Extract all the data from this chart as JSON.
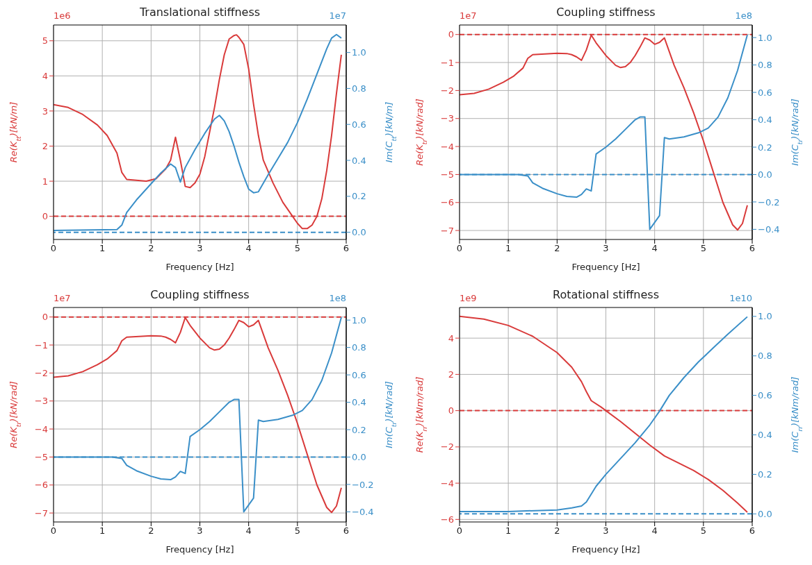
{
  "chart_data": [
    {
      "type": "line",
      "title": "Translational stiffness",
      "xlabel": "Frequency [Hz]",
      "ylabel": "Re(K$_{tt}$)[kN/m]",
      "y2label": "Im(C$_{tt}$)[kN/m]",
      "annotations": [
        "1e6",
        "1e7"
      ],
      "xlim": [
        0,
        6
      ],
      "xticks": [
        0,
        1,
        2,
        3,
        4,
        5,
        6
      ],
      "ylim": [
        -0.66,
        5.45
      ],
      "yticks": [
        0,
        1,
        2,
        3,
        4,
        5
      ],
      "y2lim": [
        -0.04,
        1.153
      ],
      "y2ticks": [
        {
          "value": 0,
          "label": "0.0"
        },
        0.2,
        0.4,
        0.6,
        0.8,
        {
          "value": 1,
          "label": "1.0"
        }
      ],
      "grid": true,
      "line_style": "solid",
      "ref_lines": [
        {
          "axis": "y",
          "value": 0,
          "color": "#d93a3a",
          "line_style": "dashed"
        },
        {
          "axis": "y2",
          "value": 0,
          "color": "#3a8fc8",
          "line_style": "dashed"
        }
      ],
      "series": [
        {
          "color": "#d93a3a",
          "axis": "y",
          "x": [
            0,
            0.3,
            0.6,
            0.9,
            1.1,
            1.3,
            1.4,
            1.5,
            1.9,
            2.1,
            2.3,
            2.4,
            2.5,
            2.6,
            2.7,
            2.8,
            2.9,
            3.0,
            3.1,
            3.2,
            3.3,
            3.4,
            3.5,
            3.6,
            3.7,
            3.75,
            3.8,
            3.9,
            4.0,
            4.1,
            4.2,
            4.3,
            4.5,
            4.7,
            4.9,
            5.0,
            5.1,
            5.2,
            5.3,
            5.4,
            5.5,
            5.6,
            5.7,
            5.8,
            5.9
          ],
          "values": [
            3.18,
            3.1,
            2.9,
            2.6,
            2.3,
            1.8,
            1.25,
            1.05,
            1.0,
            1.07,
            1.35,
            1.6,
            2.25,
            1.6,
            0.85,
            0.82,
            0.95,
            1.2,
            1.7,
            2.4,
            3.1,
            3.9,
            4.6,
            5.05,
            5.15,
            5.17,
            5.1,
            4.9,
            4.2,
            3.2,
            2.3,
            1.6,
            0.95,
            0.4,
            0,
            -0.2,
            -0.35,
            -0.35,
            -0.25,
            0,
            0.5,
            1.3,
            2.3,
            3.5,
            4.6
          ]
        },
        {
          "color": "#3a8fc8",
          "axis": "y2",
          "x": [
            0,
            1.3,
            1.4,
            1.5,
            1.7,
            2.0,
            2.2,
            2.4,
            2.5,
            2.6,
            2.7,
            2.9,
            3.1,
            3.3,
            3.4,
            3.5,
            3.6,
            3.7,
            3.8,
            3.9,
            4.0,
            4.1,
            4.2,
            4.4,
            4.6,
            4.8,
            5.0,
            5.2,
            5.4,
            5.6,
            5.7,
            5.8,
            5.9
          ],
          "values": [
            0.01,
            0.015,
            0.04,
            0.11,
            0.18,
            0.27,
            0.33,
            0.38,
            0.36,
            0.28,
            0.36,
            0.46,
            0.55,
            0.63,
            0.65,
            0.62,
            0.56,
            0.48,
            0.39,
            0.31,
            0.24,
            0.22,
            0.225,
            0.32,
            0.41,
            0.5,
            0.61,
            0.74,
            0.88,
            1.02,
            1.08,
            1.1,
            1.08
          ]
        }
      ]
    },
    {
      "type": "line",
      "title": "Coupling stiffness",
      "xlabel": "Frequency [Hz]",
      "ylabel": "Re(K$_{tr}$)[kN/rad]",
      "y2label": "Im(C$_{tr}$)[kN/rad]",
      "annotations": [
        "1e7",
        "1e8"
      ],
      "xlim": [
        0,
        6
      ],
      "xticks": [
        0,
        1,
        2,
        3,
        4,
        5,
        6
      ],
      "ylim": [
        -7.32,
        0.34
      ],
      "yticks": [
        {
          "value": -7,
          "label": "−7"
        },
        {
          "value": -6,
          "label": "−6"
        },
        {
          "value": -5,
          "label": "−5"
        },
        {
          "value": -4,
          "label": "−4"
        },
        {
          "value": -3,
          "label": "−3"
        },
        {
          "value": -2,
          "label": "−2"
        },
        {
          "value": -1,
          "label": "−1"
        },
        0
      ],
      "y2lim": [
        -0.474,
        1.092
      ],
      "y2ticks": [
        {
          "value": -0.4,
          "label": "−0.4"
        },
        {
          "value": -0.2,
          "label": "−0.2"
        },
        {
          "value": 0,
          "label": "0.0"
        },
        0.2,
        0.4,
        0.6,
        0.8,
        {
          "value": 1,
          "label": "1.0"
        }
      ],
      "grid": true,
      "line_style": "solid",
      "ref_lines": [
        {
          "axis": "y",
          "value": 0,
          "color": "#d93a3a",
          "line_style": "dashed"
        },
        {
          "axis": "y2",
          "value": 0,
          "color": "#3a8fc8",
          "line_style": "dashed"
        }
      ],
      "series": [
        {
          "color": "#d93a3a",
          "axis": "y",
          "x": [
            0,
            0.3,
            0.6,
            0.9,
            1.1,
            1.3,
            1.4,
            1.5,
            2.0,
            2.2,
            2.3,
            2.4,
            2.5,
            2.6,
            2.7,
            2.8,
            3.0,
            3.2,
            3.3,
            3.4,
            3.5,
            3.6,
            3.7,
            3.8,
            3.9,
            4.0,
            4.1,
            4.2,
            4.4,
            4.6,
            4.8,
            5.0,
            5.2,
            5.4,
            5.6,
            5.7,
            5.8,
            5.9
          ],
          "values": [
            -2.15,
            -2.1,
            -1.95,
            -1.7,
            -1.5,
            -1.2,
            -0.85,
            -0.72,
            -0.67,
            -0.68,
            -0.72,
            -0.8,
            -0.92,
            -0.55,
            -0.02,
            -0.3,
            -0.75,
            -1.1,
            -1.18,
            -1.15,
            -1.0,
            -0.75,
            -0.45,
            -0.12,
            -0.2,
            -0.35,
            -0.28,
            -0.12,
            -1.1,
            -1.9,
            -2.8,
            -3.8,
            -4.9,
            -6.0,
            -6.8,
            -6.98,
            -6.75,
            -6.1
          ]
        },
        {
          "color": "#3a8fc8",
          "axis": "y2",
          "x": [
            0,
            1.2,
            1.4,
            1.5,
            1.7,
            2.0,
            2.2,
            2.4,
            2.5,
            2.6,
            2.7,
            2.8,
            3.0,
            3.2,
            3.4,
            3.6,
            3.7,
            3.8,
            3.9,
            4.1,
            4.2,
            4.3,
            4.6,
            4.9,
            5.1,
            5.3,
            5.5,
            5.7,
            5.9
          ],
          "values": [
            0,
            0,
            -0.01,
            -0.06,
            -0.1,
            -0.14,
            -0.16,
            -0.165,
            -0.145,
            -0.105,
            -0.12,
            0.15,
            0.2,
            0.26,
            0.33,
            0.4,
            0.42,
            0.42,
            -0.4,
            -0.3,
            0.27,
            0.26,
            0.275,
            0.305,
            0.34,
            0.42,
            0.56,
            0.76,
            1.02
          ]
        }
      ]
    },
    {
      "type": "line",
      "title": "Coupling stiffness",
      "xlabel": "Frequency [Hz]",
      "ylabel": "Re(K$_{tr}$)[kN/rad]",
      "y2label": "Im(C$_{tr}$)[kN/rad]",
      "annotations": [
        "1e7",
        "1e8"
      ],
      "xlim": [
        0,
        6
      ],
      "xticks": [
        0,
        1,
        2,
        3,
        4,
        5,
        6
      ],
      "ylim": [
        -7.32,
        0.34
      ],
      "yticks": [
        {
          "value": -7,
          "label": "−7"
        },
        {
          "value": -6,
          "label": "−6"
        },
        {
          "value": -5,
          "label": "−5"
        },
        {
          "value": -4,
          "label": "−4"
        },
        {
          "value": -3,
          "label": "−3"
        },
        {
          "value": -2,
          "label": "−2"
        },
        {
          "value": -1,
          "label": "−1"
        },
        0
      ],
      "y2lim": [
        -0.474,
        1.092
      ],
      "y2ticks": [
        {
          "value": -0.4,
          "label": "−0.4"
        },
        {
          "value": -0.2,
          "label": "−0.2"
        },
        {
          "value": 0,
          "label": "0.0"
        },
        0.2,
        0.4,
        0.6,
        0.8,
        {
          "value": 1,
          "label": "1.0"
        }
      ],
      "grid": true,
      "line_style": "solid",
      "ref_lines": [
        {
          "axis": "y",
          "value": 0,
          "color": "#d93a3a",
          "line_style": "dashed"
        },
        {
          "axis": "y2",
          "value": 0,
          "color": "#3a8fc8",
          "line_style": "dashed"
        }
      ],
      "series": [
        {
          "color": "#d93a3a",
          "axis": "y",
          "x": [
            0,
            0.3,
            0.6,
            0.9,
            1.1,
            1.3,
            1.4,
            1.5,
            2.0,
            2.2,
            2.3,
            2.4,
            2.5,
            2.6,
            2.7,
            2.8,
            3.0,
            3.2,
            3.3,
            3.4,
            3.5,
            3.6,
            3.7,
            3.8,
            3.9,
            4.0,
            4.1,
            4.2,
            4.4,
            4.6,
            4.8,
            5.0,
            5.2,
            5.4,
            5.6,
            5.7,
            5.8,
            5.9
          ],
          "values": [
            -2.15,
            -2.1,
            -1.95,
            -1.7,
            -1.5,
            -1.2,
            -0.85,
            -0.72,
            -0.67,
            -0.68,
            -0.72,
            -0.8,
            -0.92,
            -0.55,
            -0.02,
            -0.3,
            -0.75,
            -1.1,
            -1.18,
            -1.15,
            -1.0,
            -0.75,
            -0.45,
            -0.12,
            -0.2,
            -0.35,
            -0.28,
            -0.12,
            -1.1,
            -1.9,
            -2.8,
            -3.8,
            -4.9,
            -6.0,
            -6.8,
            -6.98,
            -6.75,
            -6.1
          ]
        },
        {
          "color": "#3a8fc8",
          "axis": "y2",
          "x": [
            0,
            1.2,
            1.4,
            1.5,
            1.7,
            2.0,
            2.2,
            2.4,
            2.5,
            2.6,
            2.7,
            2.8,
            3.0,
            3.2,
            3.4,
            3.6,
            3.7,
            3.8,
            3.9,
            4.1,
            4.2,
            4.3,
            4.6,
            4.9,
            5.1,
            5.3,
            5.5,
            5.7,
            5.9
          ],
          "values": [
            0,
            0,
            -0.01,
            -0.06,
            -0.1,
            -0.14,
            -0.16,
            -0.165,
            -0.145,
            -0.105,
            -0.12,
            0.15,
            0.2,
            0.26,
            0.33,
            0.4,
            0.42,
            0.42,
            -0.4,
            -0.3,
            0.27,
            0.26,
            0.275,
            0.305,
            0.34,
            0.42,
            0.56,
            0.76,
            1.02
          ]
        }
      ]
    },
    {
      "type": "line",
      "title": "Rotational stiffness",
      "xlabel": "Frequency [Hz]",
      "ylabel": "Re(K$_{rr}$)[kNm/rad]",
      "y2label": "Im(C$_{rr}$)[kNm/rad]",
      "annotations": [
        "1e9",
        "1e10"
      ],
      "xlim": [
        0,
        6
      ],
      "xticks": [
        0,
        1,
        2,
        3,
        4,
        5,
        6
      ],
      "ylim": [
        -6.14,
        5.69
      ],
      "yticks": [
        {
          "value": -6,
          "label": "−6"
        },
        {
          "value": -4,
          "label": "−4"
        },
        {
          "value": -2,
          "label": "−2"
        },
        0,
        2,
        4
      ],
      "y2lim": [
        -0.041,
        1.045
      ],
      "y2ticks": [
        {
          "value": 0,
          "label": "0.0"
        },
        0.2,
        0.4,
        0.6,
        0.8,
        {
          "value": 1,
          "label": "1.0"
        }
      ],
      "grid": true,
      "line_style": "solid",
      "ref_lines": [
        {
          "axis": "y",
          "value": 0,
          "color": "#d93a3a",
          "line_style": "dashed"
        },
        {
          "axis": "y2",
          "value": 0,
          "color": "#3a8fc8",
          "line_style": "dashed"
        }
      ],
      "series": [
        {
          "color": "#d93a3a",
          "axis": "y",
          "x": [
            0,
            0.5,
            1.0,
            1.5,
            2.0,
            2.3,
            2.5,
            2.6,
            2.7,
            2.9,
            3.0,
            3.3,
            3.6,
            3.9,
            4.2,
            4.5,
            4.8,
            5.1,
            5.4,
            5.7,
            5.9
          ],
          "values": [
            5.2,
            5.05,
            4.7,
            4.1,
            3.2,
            2.4,
            1.6,
            1.05,
            0.55,
            0.2,
            0,
            -0.6,
            -1.25,
            -1.9,
            -2.5,
            -2.9,
            -3.3,
            -3.8,
            -4.4,
            -5.1,
            -5.6
          ]
        },
        {
          "color": "#3a8fc8",
          "axis": "y2",
          "x": [
            0,
            1.0,
            2.0,
            2.3,
            2.5,
            2.6,
            2.8,
            3.0,
            3.3,
            3.6,
            3.9,
            4.1,
            4.3,
            4.6,
            4.9,
            5.2,
            5.5,
            5.9
          ],
          "values": [
            0.012,
            0.012,
            0.02,
            0.03,
            0.04,
            0.06,
            0.14,
            0.2,
            0.28,
            0.36,
            0.45,
            0.52,
            0.6,
            0.69,
            0.77,
            0.84,
            0.91,
            0.998
          ]
        }
      ]
    }
  ]
}
